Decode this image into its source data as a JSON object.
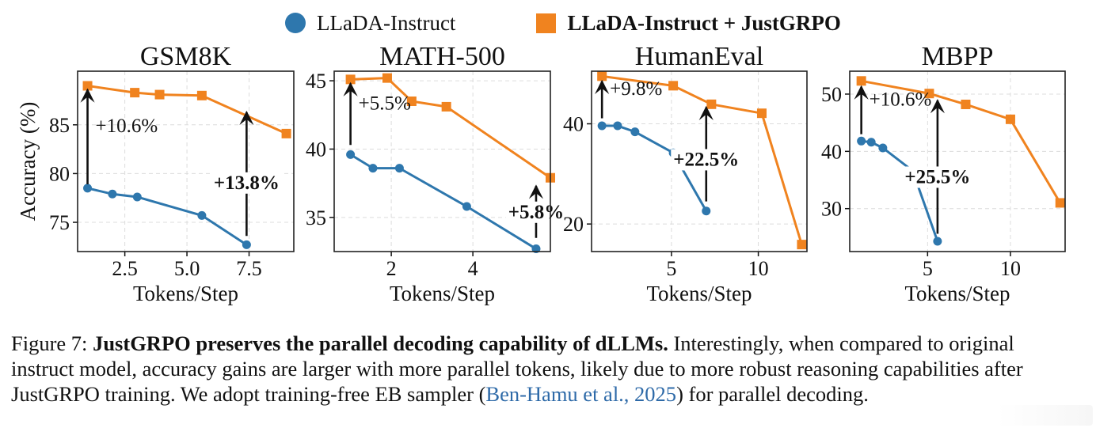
{
  "legend": {
    "series_a": "LLaDA-Instruct",
    "series_b": "LLaDA-Instruct + JustGRPO"
  },
  "colors": {
    "series_a": "#2e77ad",
    "series_b": "#f0831f"
  },
  "chart_data": [
    {
      "type": "line",
      "title": "GSM8K",
      "xlabel": "Tokens/Step",
      "ylabel": "Accuracy (%)",
      "xlim": [
        0.6,
        9.3
      ],
      "ylim": [
        72.0,
        90.5
      ],
      "xticks": [
        2.5,
        5.0,
        7.5
      ],
      "xtick_labels": [
        "2.5",
        "5.0",
        "7.5"
      ],
      "yticks": [
        75,
        80,
        85
      ],
      "ytick_labels": [
        "75",
        "80",
        "85"
      ],
      "grid": true,
      "series": [
        {
          "name": "LLaDA-Instruct",
          "x": [
            1.0,
            2.0,
            3.0,
            5.6,
            7.4
          ],
          "y": [
            78.5,
            77.9,
            77.6,
            75.7,
            72.7
          ]
        },
        {
          "name": "LLaDA-Instruct + JustGRPO",
          "x": [
            1.0,
            2.9,
            3.9,
            5.6,
            9.0
          ],
          "y": [
            89.0,
            88.3,
            88.1,
            88.0,
            84.1
          ]
        }
      ],
      "annotations": [
        {
          "text": "+10.6%",
          "x": 1.0,
          "y_from": 78.9,
          "y_to": 88.6,
          "bold": false
        },
        {
          "text": "+13.8%",
          "x": 7.4,
          "y_from": 73.6,
          "y_to": 86.3,
          "bold": true
        }
      ]
    },
    {
      "type": "line",
      "title": "MATH-500",
      "xlabel": "Tokens/Step",
      "ylabel": "",
      "xlim": [
        0.6,
        5.9
      ],
      "ylim": [
        32.5,
        45.7
      ],
      "xticks": [
        2,
        4
      ],
      "xtick_labels": [
        "2",
        "4"
      ],
      "yticks": [
        35,
        40,
        45
      ],
      "ytick_labels": [
        "35",
        "40",
        "45"
      ],
      "grid": true,
      "series": [
        {
          "name": "LLaDA-Instruct",
          "x": [
            1.0,
            1.55,
            2.2,
            3.85,
            5.55
          ],
          "y": [
            39.6,
            38.6,
            38.6,
            35.8,
            32.7
          ]
        },
        {
          "name": "LLaDA-Instruct + JustGRPO",
          "x": [
            1.0,
            1.9,
            2.5,
            3.35,
            5.9
          ],
          "y": [
            45.1,
            45.2,
            43.5,
            43.1,
            37.9
          ]
        }
      ],
      "annotations": [
        {
          "text": "+5.5%",
          "x": 1.0,
          "y_from": 40.3,
          "y_to": 44.8,
          "bold": false
        },
        {
          "text": "+5.8%",
          "x": 5.55,
          "y_from": 33.5,
          "y_to": 37.3,
          "bold": true
        }
      ]
    },
    {
      "type": "line",
      "title": "HumanEval",
      "xlabel": "Tokens/Step",
      "ylabel": "",
      "xlim": [
        0.4,
        12.8
      ],
      "ylim": [
        14.5,
        50.5
      ],
      "xticks": [
        5,
        10
      ],
      "xtick_labels": [
        "5",
        "10"
      ],
      "yticks": [
        20,
        40
      ],
      "ytick_labels": [
        "20",
        "40"
      ],
      "grid": true,
      "series": [
        {
          "name": "LLaDA-Instruct",
          "x": [
            1.0,
            1.9,
            2.9,
            5.1,
            7.0
          ],
          "y": [
            39.6,
            39.6,
            38.4,
            34.2,
            22.6
          ]
        },
        {
          "name": "LLaDA-Instruct + JustGRPO",
          "x": [
            1.0,
            5.1,
            7.3,
            10.2,
            12.5
          ],
          "y": [
            49.5,
            47.6,
            43.9,
            42.1,
            15.9
          ]
        }
      ],
      "annotations": [
        {
          "text": "+9.8%",
          "x": 1.0,
          "y_from": 41.1,
          "y_to": 48.5,
          "bold": false
        },
        {
          "text": "+22.5%",
          "x": 7.0,
          "y_from": 24.5,
          "y_to": 43.3,
          "bold": true
        }
      ]
    },
    {
      "type": "line",
      "title": "MBPP",
      "xlabel": "Tokens/Step",
      "ylabel": "",
      "xlim": [
        0.3,
        13.3
      ],
      "ylim": [
        22.5,
        54.0
      ],
      "xticks": [
        5,
        10
      ],
      "xtick_labels": [
        "5",
        "10"
      ],
      "yticks": [
        30,
        40,
        50
      ],
      "ytick_labels": [
        "30",
        "40",
        "50"
      ],
      "grid": true,
      "series": [
        {
          "name": "LLaDA-Instruct",
          "x": [
            1.0,
            1.6,
            2.3,
            4.1,
            5.6
          ],
          "y": [
            41.8,
            41.6,
            40.6,
            36.6,
            24.3
          ]
        },
        {
          "name": "LLaDA-Instruct + JustGRPO",
          "x": [
            1.0,
            5.1,
            7.3,
            10.0,
            13.0
          ],
          "y": [
            52.3,
            50.1,
            48.2,
            45.6,
            31.0
          ]
        }
      ],
      "annotations": [
        {
          "text": "+10.6%",
          "x": 1.0,
          "y_from": 43.0,
          "y_to": 51.3,
          "bold": false
        },
        {
          "text": "+25.5%",
          "x": 5.6,
          "y_from": 25.6,
          "y_to": 48.9,
          "bold": true
        }
      ]
    }
  ],
  "caption": {
    "label": "Figure 7: ",
    "title": "JustGRPO preserves the parallel decoding capability of dLLMs.",
    "body": " Interestingly, when compared to original instruct model, accuracy gains are larger with more parallel tokens, likely due to more robust reasoning capabilities after JustGRPO training. We adopt training-free EB sampler (",
    "citation": "Ben-Hamu et al., 2025",
    "tail": ") for parallel decoding."
  }
}
